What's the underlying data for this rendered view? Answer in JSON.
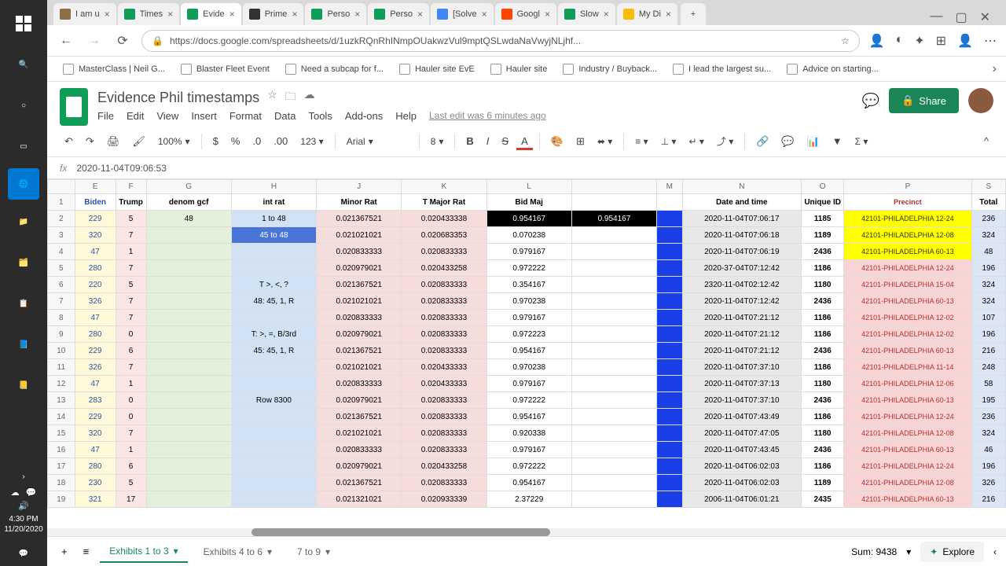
{
  "taskbar": {
    "time": "4:30 PM",
    "date": "11/20/2020"
  },
  "tabs": [
    {
      "title": "I am u",
      "favicon": "#8b6f47"
    },
    {
      "title": "Times",
      "favicon": "#0f9d58"
    },
    {
      "title": "Evide",
      "favicon": "#0f9d58",
      "active": true
    },
    {
      "title": "Prime",
      "favicon": "#333"
    },
    {
      "title": "Perso",
      "favicon": "#0f9d58"
    },
    {
      "title": "Perso",
      "favicon": "#0f9d58"
    },
    {
      "title": "[Solve",
      "favicon": "#4285f4"
    },
    {
      "title": "Googl",
      "favicon": "#ff4500"
    },
    {
      "title": "Slow",
      "favicon": "#0f9d58"
    },
    {
      "title": "My Di",
      "favicon": "#fbbc04"
    }
  ],
  "url": "https://docs.google.com/spreadsheets/d/1uzkRQnRhINmpOUakwzVul9mptQSLwdaNaVwyjNLjhf...",
  "bookmarks": [
    "MasterClass | Neil G...",
    "Blaster Fleet Event",
    "Need a subcap for f...",
    "Hauler site EvE",
    "Hauler site",
    "Industry / Buyback...",
    "I lead the largest su...",
    "Advice on starting..."
  ],
  "doc": {
    "title": "Evidence Phil timestamps",
    "menus": [
      "File",
      "Edit",
      "View",
      "Insert",
      "Format",
      "Data",
      "Tools",
      "Add-ons",
      "Help"
    ],
    "last_edit": "Last edit was 6 minutes ago",
    "share": "Share"
  },
  "toolbar": {
    "zoom": "100%",
    "font": "Arial",
    "size": "8"
  },
  "formula": "2020-11-04T09:06:53",
  "columns": [
    "",
    "E",
    "F",
    "G",
    "H",
    "J",
    "K",
    "L",
    "",
    "M",
    "N",
    "O",
    "P",
    "S"
  ],
  "headers": [
    "Biden",
    "Trump",
    "denom gcf",
    "int rat",
    "Minor Rat",
    "T Major Rat",
    "Bid Maj",
    "",
    "",
    "Date and time",
    "Unique ID",
    "Precinct",
    "Total"
  ],
  "rows": [
    {
      "n": 2,
      "biden": "229",
      "trump": "5",
      "denom": "48",
      "intrat": "1 to 48",
      "minor": "0.021367521",
      "tmajor": "0.020433338",
      "bidmaj": "0.954167",
      "empty": "0.954167",
      "date": "2020-11-04T07:06:17",
      "uid": "1185",
      "precinct": "42101-PHILADELPHIA 12-24",
      "total": "236",
      "py": true,
      "bm_black": true
    },
    {
      "n": 3,
      "biden": "320",
      "trump": "7",
      "denom": "",
      "intrat": "45 to 48",
      "minor": "0.021021021",
      "tmajor": "0.020683353",
      "bidmaj": "0.070238",
      "empty": "",
      "date": "2020-11-04T07:06:18",
      "uid": "1189",
      "precinct": "42101-PHILADELPHIA 12-08",
      "total": "324",
      "py": true,
      "sel": true
    },
    {
      "n": 4,
      "biden": "47",
      "trump": "1",
      "denom": "",
      "intrat": "",
      "minor": "0.020833333",
      "tmajor": "0.020833333",
      "bidmaj": "0.979167",
      "empty": "",
      "date": "2020-11-04T07:06:19",
      "uid": "2436",
      "precinct": "42101-PHILADELPHIA 60-13",
      "total": "48",
      "py": true
    },
    {
      "n": 5,
      "biden": "280",
      "trump": "7",
      "denom": "",
      "intrat": "",
      "minor": "0.020979021",
      "tmajor": "0.020433258",
      "bidmaj": "0.972222",
      "empty": "",
      "date": "2020-37-04T07:12:42",
      "uid": "1186",
      "precinct": "42101-PHILADELPHIA 12-24",
      "total": "196"
    },
    {
      "n": 6,
      "biden": "220",
      "trump": "5",
      "denom": "",
      "intrat": "T     >, <, ?",
      "minor": "0.021367521",
      "tmajor": "0.020833333",
      "bidmaj": "0.354167",
      "empty": "",
      "date": "2320-11-04T02:12:42",
      "uid": "1180",
      "precinct": "42101-PHILADELPHIA 15-04",
      "total": "324"
    },
    {
      "n": 7,
      "biden": "326",
      "trump": "7",
      "denom": "",
      "intrat": "48: 45, 1, R",
      "minor": "0.021021021",
      "tmajor": "0.020833333",
      "bidmaj": "0.970238",
      "empty": "",
      "date": "2020-11-04T07:12:42",
      "uid": "2436",
      "precinct": "42101-PHILADELPHIA 60-13",
      "total": "324"
    },
    {
      "n": 8,
      "biden": "47",
      "trump": "7",
      "denom": "",
      "intrat": "",
      "minor": "0.020833333",
      "tmajor": "0.020833333",
      "bidmaj": "0.979167",
      "empty": "",
      "date": "2020-11-04T07:21:12",
      "uid": "1186",
      "precinct": "42101-PHILADELPHIA 12-02",
      "total": "107"
    },
    {
      "n": 9,
      "biden": "280",
      "trump": "0",
      "denom": "",
      "intrat": "T:    >, =, B/3rd",
      "minor": "0.020979021",
      "tmajor": "0.020833333",
      "bidmaj": "0.972223",
      "empty": "",
      "date": "2020-11-04T07:21:12",
      "uid": "1186",
      "precinct": "42101-PHILADELPHIA 12-02",
      "total": "196"
    },
    {
      "n": 10,
      "biden": "229",
      "trump": "6",
      "denom": "",
      "intrat": "45:  45, 1, R",
      "minor": "0.021367521",
      "tmajor": "0.020833333",
      "bidmaj": "0.954167",
      "empty": "",
      "date": "2020-11-04T07:21:12",
      "uid": "2436",
      "precinct": "42101-PHILADELPHIA 60-13",
      "total": "216"
    },
    {
      "n": 11,
      "biden": "326",
      "trump": "7",
      "denom": "",
      "intrat": "",
      "minor": "0.021021021",
      "tmajor": "0.020433333",
      "bidmaj": "0.970238",
      "empty": "",
      "date": "2020-11-04T07:37:10",
      "uid": "1186",
      "precinct": "42101-PHILADELPHIA 11-14",
      "total": "248"
    },
    {
      "n": 12,
      "biden": "47",
      "trump": "1",
      "denom": "",
      "intrat": "",
      "minor": "0.020833333",
      "tmajor": "0.020433333",
      "bidmaj": "0.979167",
      "empty": "",
      "date": "2020-11-04T07:37:13",
      "uid": "1180",
      "precinct": "42101-PHILADELPHIA 12-06",
      "total": "58"
    },
    {
      "n": 13,
      "biden": "283",
      "trump": "0",
      "denom": "",
      "intrat": "Row 8300",
      "minor": "0.020979021",
      "tmajor": "0.020833333",
      "bidmaj": "0.972222",
      "empty": "",
      "date": "2020-11-04T07:37:10",
      "uid": "2436",
      "precinct": "42101-PHILADELPHIA 60-13",
      "total": "195"
    },
    {
      "n": 14,
      "biden": "229",
      "trump": "0",
      "denom": "",
      "intrat": "",
      "minor": "0.021367521",
      "tmajor": "0.020833333",
      "bidmaj": "0.954167",
      "empty": "",
      "date": "2020-11-04T07:43:49",
      "uid": "1186",
      "precinct": "42101-PHILADELPHIA 12-24",
      "total": "236"
    },
    {
      "n": 15,
      "biden": "320",
      "trump": "7",
      "denom": "",
      "intrat": "",
      "minor": "0.021021021",
      "tmajor": "0.020833333",
      "bidmaj": "0.920338",
      "empty": "",
      "date": "2020-11-04T07:47:05",
      "uid": "1180",
      "precinct": "42101-PHILADELPHIA 12-08",
      "total": "324"
    },
    {
      "n": 16,
      "biden": "47",
      "trump": "1",
      "denom": "",
      "intrat": "",
      "minor": "0.020833333",
      "tmajor": "0.020833333",
      "bidmaj": "0.979167",
      "empty": "",
      "date": "2020-11-04T07:43:45",
      "uid": "2436",
      "precinct": "42101-PHILADELPHIA 60-13",
      "total": "46"
    },
    {
      "n": 17,
      "biden": "280",
      "trump": "6",
      "denom": "",
      "intrat": "",
      "minor": "0.020979021",
      "tmajor": "0.020433258",
      "bidmaj": "0.972222",
      "empty": "",
      "date": "2020-11-04T06:02:03",
      "uid": "1186",
      "precinct": "42101-PHILADELPHIA 12-24",
      "total": "196"
    },
    {
      "n": 18,
      "biden": "230",
      "trump": "5",
      "denom": "",
      "intrat": "",
      "minor": "0.021367521",
      "tmajor": "0.020833333",
      "bidmaj": "0.954167",
      "empty": "",
      "date": "2020-11-04T06:02:03",
      "uid": "1189",
      "precinct": "42101-PHILADELPHIA 12-08",
      "total": "326"
    },
    {
      "n": 19,
      "biden": "321",
      "trump": "17",
      "denom": "",
      "intrat": "",
      "minor": "0.021321021",
      "tmajor": "0.020933339",
      "bidmaj": "2.37229",
      "empty": "",
      "date": "2006-11-04T06:01:21",
      "uid": "2435",
      "precinct": "42101-PHILADELPHIA 60-13",
      "total": "216"
    }
  ],
  "sheet_tabs": {
    "active": "Exhibits 1 to 3",
    "others": [
      "Exhibits 4 to 6",
      "7 to 9"
    ]
  },
  "status": {
    "sum": "Sum: 9438",
    "explore": "Explore"
  }
}
